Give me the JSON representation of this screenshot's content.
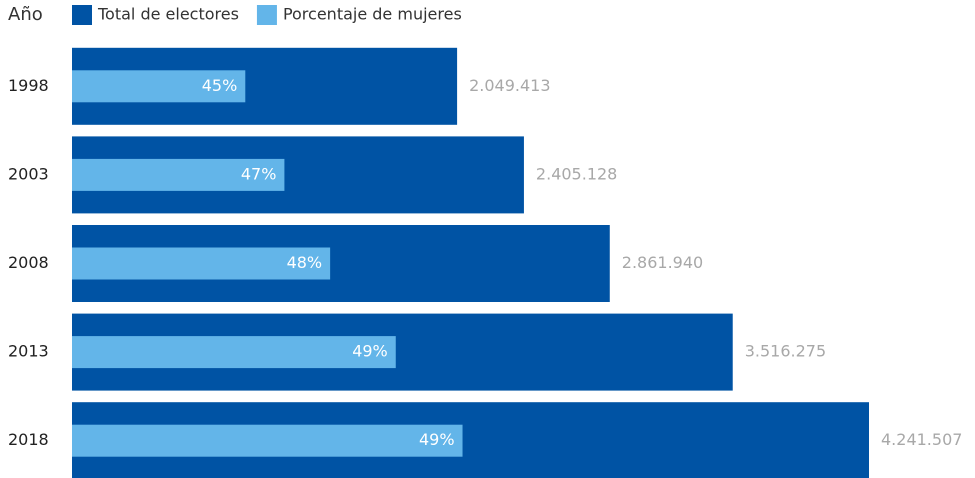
{
  "chart_data": {
    "type": "bar",
    "orientation": "horizontal",
    "ylabel": "Año",
    "categories": [
      "1998",
      "2003",
      "2008",
      "2013",
      "2018"
    ],
    "series": [
      {
        "name": "Total de electores",
        "color": "#0053a4",
        "values": [
          2049413,
          2405128,
          2861940,
          3516275,
          4241507
        ],
        "value_labels": [
          "2.049.413",
          "2.405.128",
          "2.861.940",
          "3.516.275",
          "4.241.507"
        ]
      },
      {
        "name": "Porcentaje de mujeres",
        "color": "#63b5e9",
        "values": [
          45,
          47,
          48,
          49,
          49
        ],
        "value_labels": [
          "45%",
          "47%",
          "48%",
          "49%",
          "49%"
        ]
      }
    ],
    "legend": "top-left"
  }
}
